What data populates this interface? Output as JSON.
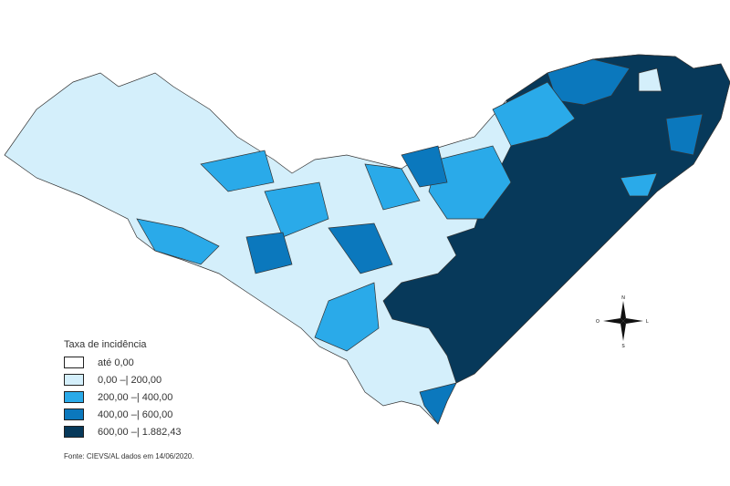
{
  "legend": {
    "title": "Taxa de incidência",
    "items": [
      {
        "label": "até 0,00",
        "color": "#ffffff"
      },
      {
        "label": "0,00 –| 200,00",
        "color": "#d4effb"
      },
      {
        "label": "200,00 –| 400,00",
        "color": "#2aaae9"
      },
      {
        "label": "400,00 –| 600,00",
        "color": "#0b78bd"
      },
      {
        "label": "600,00 –| 1.882,43",
        "color": "#07395a"
      }
    ]
  },
  "source": "Fonte: CIEVS/AL dados em 14/06/2020.",
  "compass": {
    "n": "N",
    "s": "S",
    "e": "L",
    "w": "O"
  }
}
